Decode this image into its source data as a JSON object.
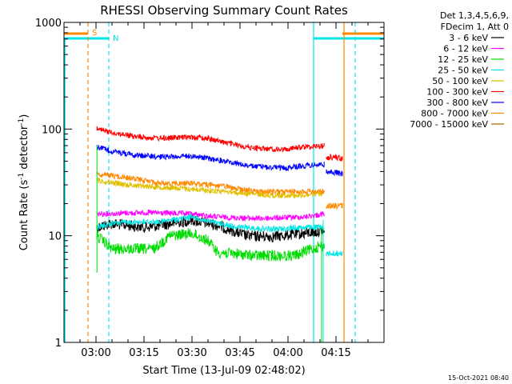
{
  "chart_data": {
    "type": "line",
    "title": "RHESSI Observing Summary Count Rates",
    "xlabel": "Start Time (13-Jul-09 02:48:02)",
    "ylabel_main": "Count Rate (s",
    "ylabel_sup1": "-1",
    "ylabel_mid": " detector",
    "ylabel_sup2": "-1",
    "ylabel_end": ")",
    "y_scale": "log",
    "ylim": [
      1,
      1000
    ],
    "xlim_minutes": [
      -10,
      90
    ],
    "x_ticks": [
      {
        "label": "03:00",
        "t": 0
      },
      {
        "label": "03:15",
        "t": 15
      },
      {
        "label": "03:30",
        "t": 30
      },
      {
        "label": "03:45",
        "t": 45
      },
      {
        "label": "04:00",
        "t": 60
      },
      {
        "label": "04:15",
        "t": 75
      }
    ],
    "y_ticks": [
      {
        "label": "1",
        "v": 1
      },
      {
        "label": "10",
        "v": 10
      },
      {
        "label": "100",
        "v": 100
      },
      {
        "label": "1000",
        "v": 1000
      }
    ],
    "legend": {
      "header1": "Det 1,3,4,5,6,9,",
      "header2": "FDecim 1, Att 0",
      "placement": "right"
    },
    "footer_date": "15-Oct-2021 08:40",
    "flag_labels": {
      "saa": "S",
      "night": "N"
    },
    "series": [
      {
        "name": "3 - 6 keV",
        "color": "#000000",
        "values": [
          [
            0.3,
            12
          ],
          [
            5,
            13
          ],
          [
            15,
            12
          ],
          [
            20,
            12.5
          ],
          [
            30,
            14
          ],
          [
            38,
            12.5
          ],
          [
            47,
            10
          ],
          [
            55,
            9.8
          ],
          [
            65,
            10.5
          ],
          [
            70,
            11
          ],
          [
            71.5,
            11
          ]
        ]
      },
      {
        "name": "6 - 12 keV",
        "color": "#ff00ff",
        "values": [
          [
            0.3,
            16
          ],
          [
            15,
            16.5
          ],
          [
            30,
            16
          ],
          [
            38,
            15
          ],
          [
            50,
            14.5
          ],
          [
            65,
            15
          ],
          [
            71.5,
            16
          ]
        ]
      },
      {
        "name": "12 - 25 keV",
        "color": "#00dd00",
        "values": [
          [
            0.3,
            10
          ],
          [
            5,
            7.5
          ],
          [
            18,
            7.5
          ],
          [
            23,
            10
          ],
          [
            30,
            10.5
          ],
          [
            35,
            9
          ],
          [
            38,
            7
          ],
          [
            50,
            6.5
          ],
          [
            62,
            6.5
          ],
          [
            70,
            8
          ],
          [
            71.5,
            8
          ]
        ]
      },
      {
        "name": "25 - 50 keV",
        "color": "#00e5e5",
        "values": [
          [
            0.3,
            12
          ],
          [
            5,
            13
          ],
          [
            12,
            13.5
          ],
          [
            20,
            13.5
          ],
          [
            30,
            15
          ],
          [
            38,
            13
          ],
          [
            45,
            12
          ],
          [
            55,
            11.5
          ],
          [
            65,
            12
          ],
          [
            71.5,
            12
          ]
        ]
      },
      {
        "name": "50 - 100 keV",
        "color": "#e0c000",
        "values": [
          [
            0.3,
            33
          ],
          [
            10,
            30
          ],
          [
            25,
            28
          ],
          [
            40,
            26
          ],
          [
            55,
            24
          ],
          [
            65,
            24
          ],
          [
            71.5,
            25
          ]
        ]
      },
      {
        "name": "100 - 300 keV",
        "color": "#ff0000",
        "values": [
          [
            0.3,
            100
          ],
          [
            5,
            93
          ],
          [
            12,
            85
          ],
          [
            20,
            82
          ],
          [
            30,
            84
          ],
          [
            35,
            82
          ],
          [
            40,
            75
          ],
          [
            48,
            67
          ],
          [
            58,
            64
          ],
          [
            65,
            68
          ],
          [
            71.5,
            70
          ]
        ]
      },
      {
        "name": "300 - 800 keV",
        "color": "#0000ff",
        "values": [
          [
            0.3,
            68
          ],
          [
            5,
            62
          ],
          [
            12,
            57
          ],
          [
            20,
            55
          ],
          [
            30,
            56
          ],
          [
            35,
            53
          ],
          [
            40,
            50
          ],
          [
            48,
            45
          ],
          [
            58,
            43
          ],
          [
            65,
            45
          ],
          [
            71.5,
            47
          ]
        ]
      },
      {
        "name": "800 - 7000 keV",
        "color": "#ff8800",
        "values": [
          [
            0.3,
            38
          ],
          [
            10,
            35
          ],
          [
            20,
            31
          ],
          [
            30,
            31
          ],
          [
            40,
            29
          ],
          [
            50,
            26
          ],
          [
            60,
            26
          ],
          [
            65,
            26
          ],
          [
            71.5,
            26
          ]
        ]
      },
      {
        "name": "7000 - 15000 keV",
        "color": "#a06400",
        "values": []
      }
    ],
    "post_segments": [
      {
        "color": "#ff0000",
        "values": [
          [
            72,
            55
          ],
          [
            77,
            53
          ]
        ]
      },
      {
        "color": "#0000ff",
        "values": [
          [
            72,
            40
          ],
          [
            77,
            38
          ]
        ]
      },
      {
        "color": "#ff8800",
        "values": [
          [
            72,
            19
          ],
          [
            77,
            19
          ]
        ]
      },
      {
        "color": "#00e5e5",
        "values": [
          [
            72,
            6.8
          ],
          [
            77,
            6.8
          ]
        ]
      }
    ],
    "flags": {
      "saa_segments": [
        [
          -10,
          -2.5
        ],
        [
          77,
          90
        ]
      ],
      "night_segments": [
        [
          -10,
          4
        ],
        [
          68,
          90
        ]
      ]
    },
    "vlines": [
      {
        "t": -2.5,
        "style": "dashed",
        "color": "#ff8800"
      },
      {
        "t": 4,
        "style": "dashed",
        "color": "#00e5e5"
      },
      {
        "t": 68,
        "style": "solid",
        "color": "#00e5e5"
      },
      {
        "t": 77.5,
        "style": "solid",
        "color": "#ff8800"
      },
      {
        "t": 81,
        "style": "dashed",
        "color": "#00e5e5"
      }
    ]
  }
}
